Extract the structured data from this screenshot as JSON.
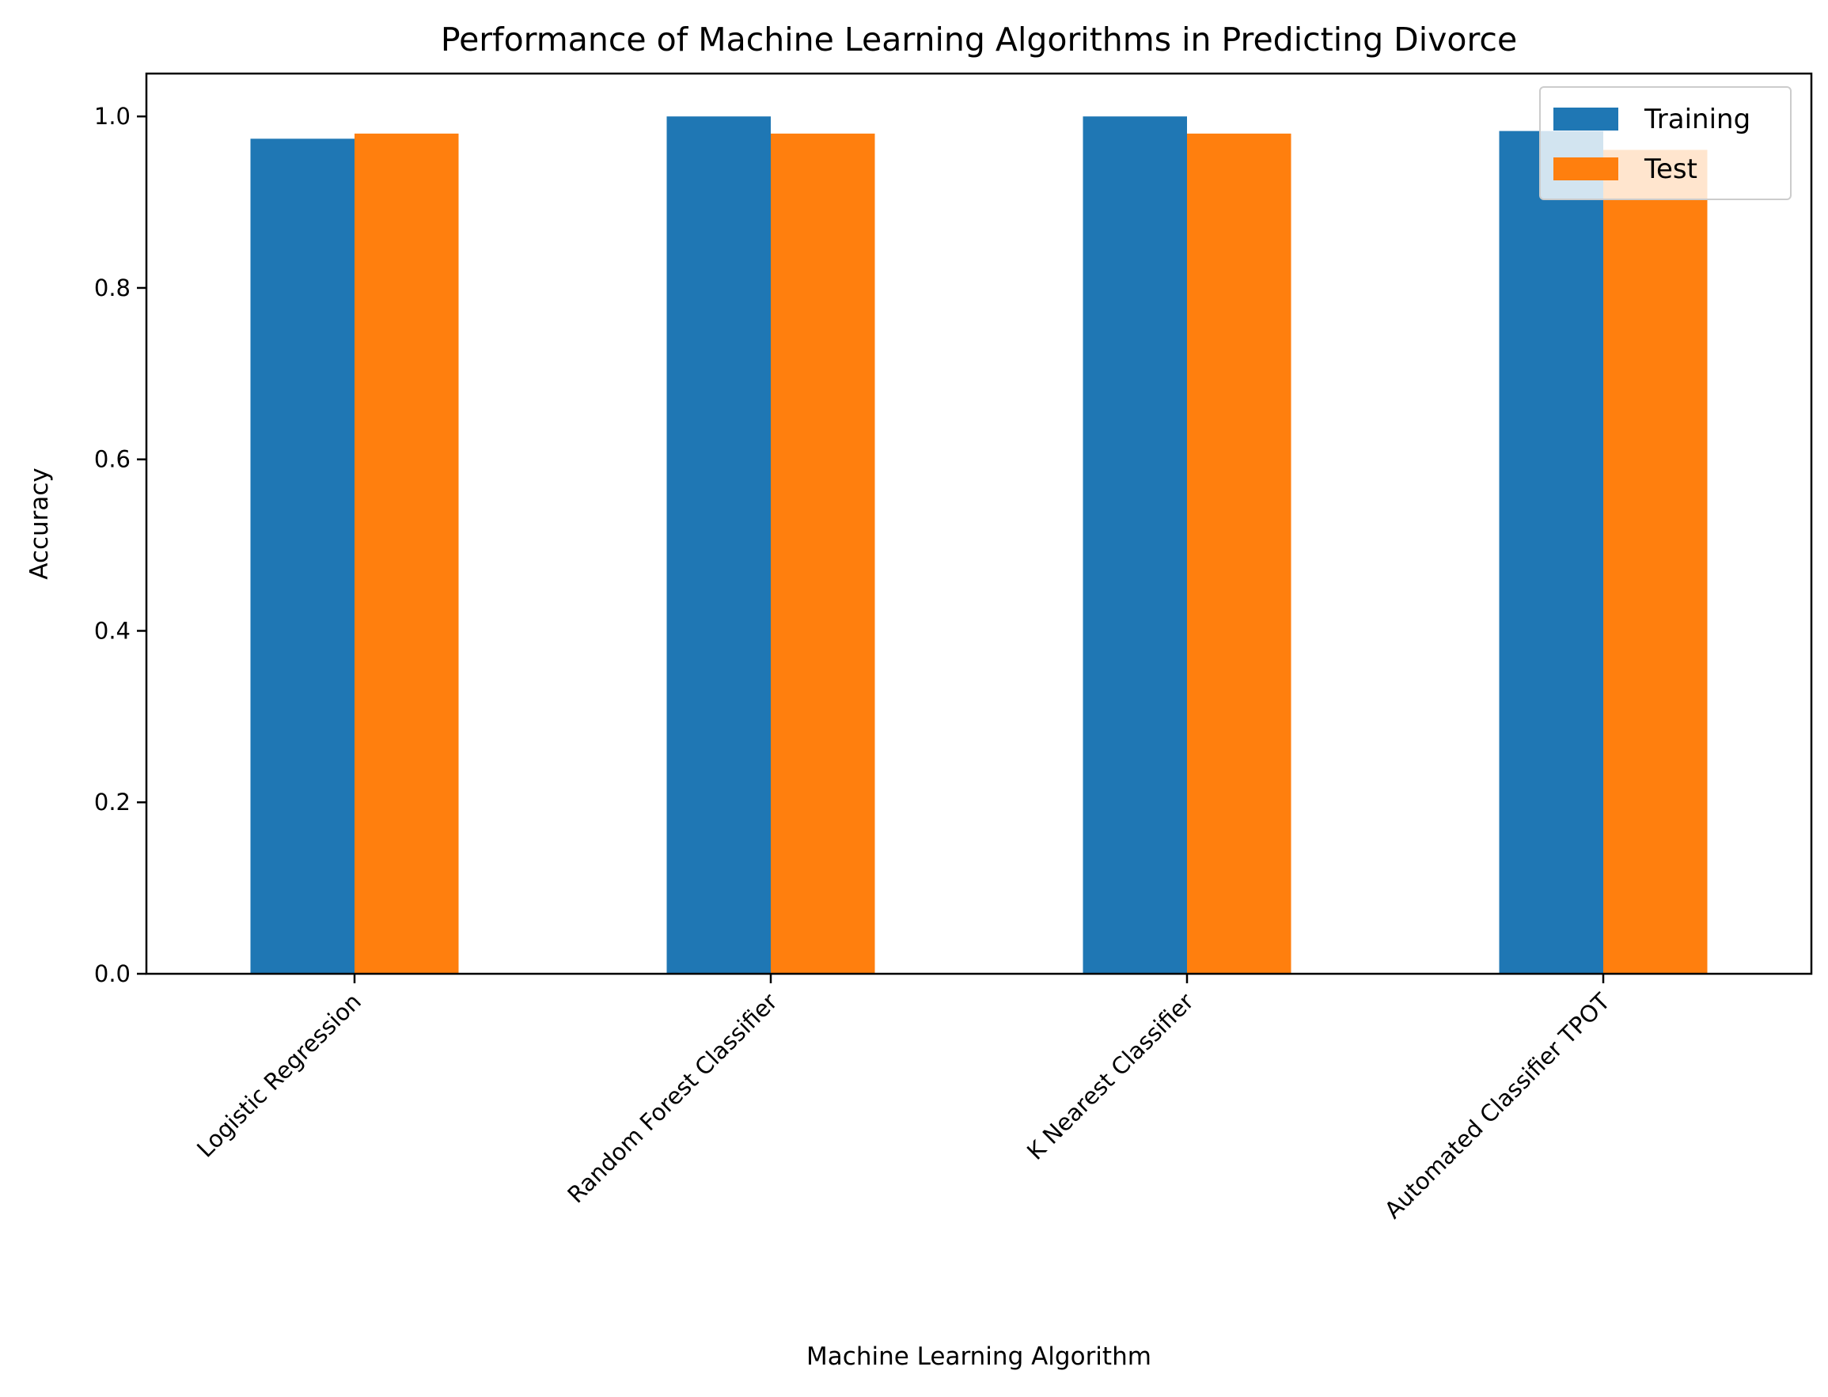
{
  "chart_data": {
    "type": "bar",
    "title": "Performance of Machine Learning Algorithms in Predicting Divorce",
    "xlabel": "Machine Learning Algorithm",
    "ylabel": "Accuracy",
    "categories": [
      "Logistic Regression",
      "Random Forest Classifier",
      "K Nearest Classifier",
      "Automated Classifier TPOT"
    ],
    "series": [
      {
        "name": "Training",
        "color": "#1f77b4",
        "values": [
          0.974,
          1.0,
          1.0,
          0.983
        ]
      },
      {
        "name": "Test",
        "color": "#ff7f0e",
        "values": [
          0.98,
          0.98,
          0.98,
          0.961
        ]
      }
    ],
    "ylim": [
      0,
      1.05
    ],
    "yticks": [
      "0.0",
      "0.2",
      "0.4",
      "0.6",
      "0.8",
      "1.0"
    ],
    "grid": false,
    "legend_position": "top-right"
  }
}
